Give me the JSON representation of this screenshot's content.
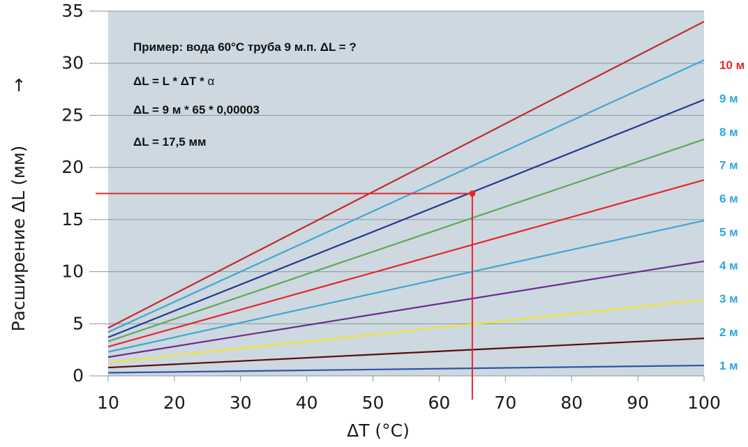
{
  "chart_data": {
    "type": "line",
    "title": "",
    "xlabel": "ΔT (°C)",
    "ylabel": "Расширение  ΔL (мм)",
    "ylabel_arrow": "→",
    "xlim": [
      10,
      100
    ],
    "ylim": [
      0,
      35
    ],
    "x_ticks": [
      10,
      20,
      30,
      40,
      50,
      60,
      70,
      80,
      90,
      100
    ],
    "y_ticks": [
      0,
      5,
      10,
      15,
      20,
      25,
      30,
      35
    ],
    "grid": true,
    "background_color": "#cdd8e0",
    "series": [
      {
        "name": "1 м",
        "color": "#2b55a5",
        "x": [
          10,
          100
        ],
        "y": [
          0.3,
          1.0
        ]
      },
      {
        "name": "2 м",
        "color": "#5a0c0c",
        "x": [
          10,
          100
        ],
        "y": [
          0.8,
          3.6
        ]
      },
      {
        "name": "3 м",
        "color": "#f2e233",
        "x": [
          10,
          100
        ],
        "y": [
          1.3,
          7.3
        ]
      },
      {
        "name": "4 м",
        "color": "#6a2d8e",
        "x": [
          10,
          100
        ],
        "y": [
          1.8,
          11.0
        ]
      },
      {
        "name": "5 м",
        "color": "#3fa6d0",
        "x": [
          10,
          100
        ],
        "y": [
          2.3,
          14.9
        ]
      },
      {
        "name": "6 м",
        "color": "#e5272b",
        "x": [
          10,
          100
        ],
        "y": [
          2.8,
          18.8
        ]
      },
      {
        "name": "7 м",
        "color": "#5ea85a",
        "x": [
          10,
          100
        ],
        "y": [
          3.3,
          22.7
        ]
      },
      {
        "name": "8 м",
        "color": "#223a8c",
        "x": [
          10,
          100
        ],
        "y": [
          3.7,
          26.5
        ]
      },
      {
        "name": "9 м",
        "color": "#3fa6d0",
        "x": [
          10,
          100
        ],
        "y": [
          4.2,
          30.3
        ]
      },
      {
        "name": "10 м",
        "color": "#c4282a",
        "x": [
          10,
          100
        ],
        "y": [
          4.6,
          34.0
        ]
      }
    ],
    "series_label_color": "#29a8df",
    "series_label_highlight_color": "#e5272b",
    "highlight_series": "10 м",
    "example_point": {
      "x": 65,
      "y": 17.5,
      "color": "#e5272b"
    },
    "annotations": {
      "line1": "Пример: вода 60°C труба 9 м.п. ΔL = ?",
      "line2": "ΔL = L * ΔT * ",
      "line2_alpha": "α",
      "line3": "ΔL = 9 м * 65 * 0,00003",
      "line4": "ΔL = 17,5 мм"
    }
  }
}
